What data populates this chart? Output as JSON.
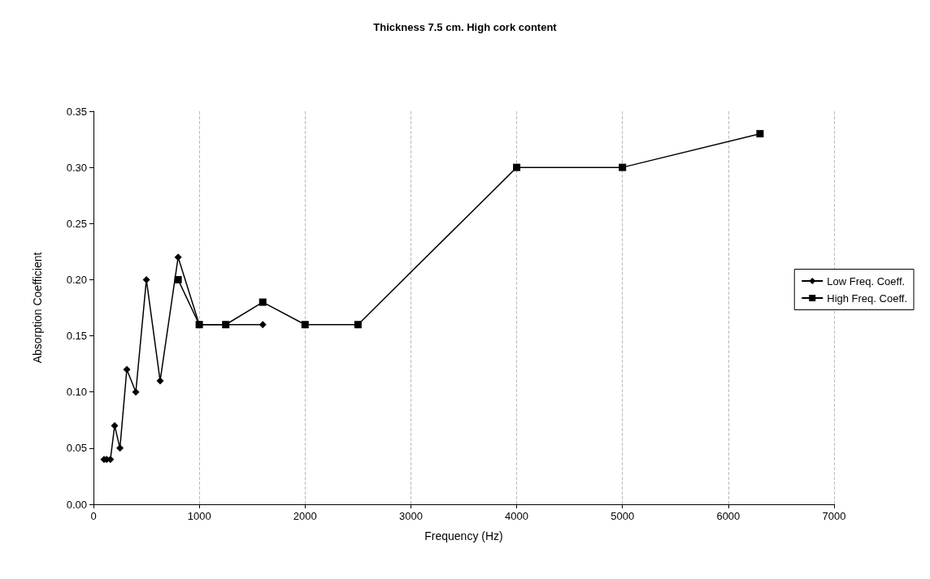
{
  "chart_data": {
    "type": "line",
    "title": "Thickness 7.5 cm. High cork content",
    "xlabel": "Frequency (Hz)",
    "ylabel": "Absorption Coefficient",
    "xlim": [
      0,
      7000
    ],
    "xticks": [
      0,
      1000,
      2000,
      3000,
      4000,
      5000,
      6000,
      7000
    ],
    "ylim": [
      0,
      0.35
    ],
    "yticks": [
      {
        "value": 0,
        "label": "0.00"
      },
      0.05,
      {
        "value": 0.1,
        "label": "0.10"
      },
      0.15,
      {
        "value": 0.2,
        "label": "0.20"
      },
      0.25,
      {
        "value": 0.3,
        "label": "0.30"
      },
      0.35
    ],
    "series": [
      {
        "name": "Low Freq. Coeff.",
        "color": "#000000",
        "marker": "diamond",
        "x": [
          100,
          125,
          160,
          200,
          250,
          315,
          400,
          500,
          630,
          800,
          1000,
          1250,
          1600
        ],
        "values": [
          0.04,
          0.04,
          0.04,
          0.07,
          0.05,
          0.12,
          0.1,
          0.2,
          0.11,
          0.22,
          0.16,
          0.16,
          0.16
        ]
      },
      {
        "name": "High Freq. Coeff.",
        "color": "#000000",
        "marker": "square",
        "x": [
          800,
          1000,
          1250,
          1600,
          2000,
          2500,
          4000,
          5000,
          6300
        ],
        "values": [
          0.2,
          0.16,
          0.16,
          0.18,
          0.16,
          0.16,
          0.3,
          0.3,
          0.33
        ]
      }
    ],
    "grid": "x",
    "legend": "right",
    "line_style": "solid"
  }
}
